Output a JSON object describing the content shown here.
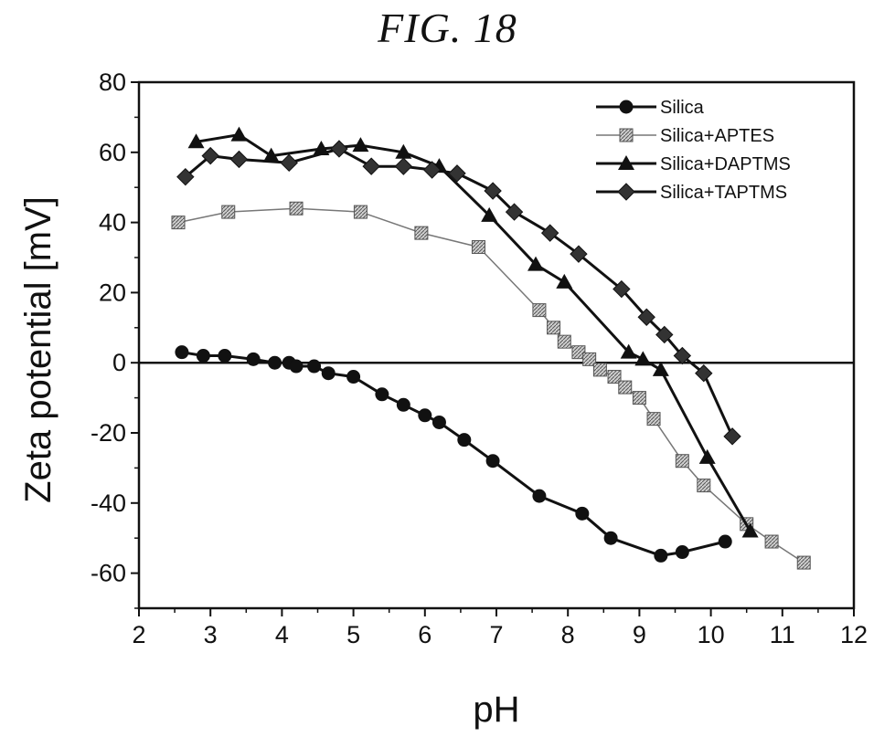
{
  "figure_label": "FIG. 18",
  "chart_data": {
    "type": "line",
    "title": "",
    "xlabel": "pH",
    "ylabel": "Zeta potential [mV]",
    "xlim": [
      2,
      12
    ],
    "ylim": [
      -70,
      80
    ],
    "xticks": [
      2,
      3,
      4,
      5,
      6,
      7,
      8,
      9,
      10,
      11,
      12
    ],
    "yticks": [
      -60,
      -40,
      -20,
      0,
      20,
      40,
      60,
      80
    ],
    "zero_line": true,
    "grid": false,
    "legend_position": "top-right",
    "series": [
      {
        "name": "Silica",
        "marker": "circle",
        "color": "#111111",
        "line_width": 3,
        "x": [
          2.6,
          2.9,
          3.2,
          3.6,
          3.9,
          4.1,
          4.2,
          4.45,
          4.65,
          5.0,
          5.4,
          5.7,
          6.0,
          6.2,
          6.55,
          6.95,
          7.6,
          8.2,
          8.6,
          9.3,
          9.6,
          10.2
        ],
        "y": [
          3,
          2,
          2,
          1,
          0,
          0,
          -1,
          -1,
          -3,
          -4,
          -9,
          -12,
          -15,
          -17,
          -22,
          -28,
          -38,
          -43,
          -50,
          -55,
          -54,
          -51
        ]
      },
      {
        "name": "Silica+APTES",
        "marker": "square-hatched",
        "color": "#777777",
        "line_width": 1.5,
        "x": [
          2.55,
          3.25,
          4.2,
          5.1,
          5.95,
          6.75,
          7.6,
          7.8,
          7.95,
          8.15,
          8.3,
          8.45,
          8.65,
          8.8,
          9.0,
          9.2,
          9.6,
          9.9,
          10.5,
          10.85,
          11.3
        ],
        "y": [
          40,
          43,
          44,
          43,
          37,
          33,
          15,
          10,
          6,
          3,
          1,
          -2,
          -4,
          -7,
          -10,
          -16,
          -28,
          -35,
          -46,
          -51,
          -57
        ]
      },
      {
        "name": "Silica+DAPTMS",
        "marker": "triangle",
        "color": "#111111",
        "line_width": 3,
        "x": [
          2.8,
          3.4,
          3.85,
          4.55,
          5.1,
          5.7,
          6.2,
          6.9,
          7.55,
          7.95,
          8.85,
          9.05,
          9.3,
          9.95,
          10.55
        ],
        "y": [
          63,
          65,
          59,
          61,
          62,
          60,
          56,
          42,
          28,
          23,
          3,
          1,
          -2,
          -27,
          -48
        ]
      },
      {
        "name": "Silica+TAPTMS",
        "marker": "diamond",
        "color": "#111111",
        "line_width": 3,
        "x": [
          2.65,
          3.0,
          3.4,
          4.1,
          4.8,
          5.25,
          5.7,
          6.1,
          6.45,
          6.95,
          7.25,
          7.75,
          8.15,
          8.75,
          9.1,
          9.35,
          9.6,
          9.9,
          10.3
        ],
        "y": [
          53,
          59,
          58,
          57,
          61,
          56,
          56,
          55,
          54,
          49,
          43,
          37,
          31,
          21,
          13,
          8,
          2,
          -3,
          -21
        ]
      }
    ]
  }
}
